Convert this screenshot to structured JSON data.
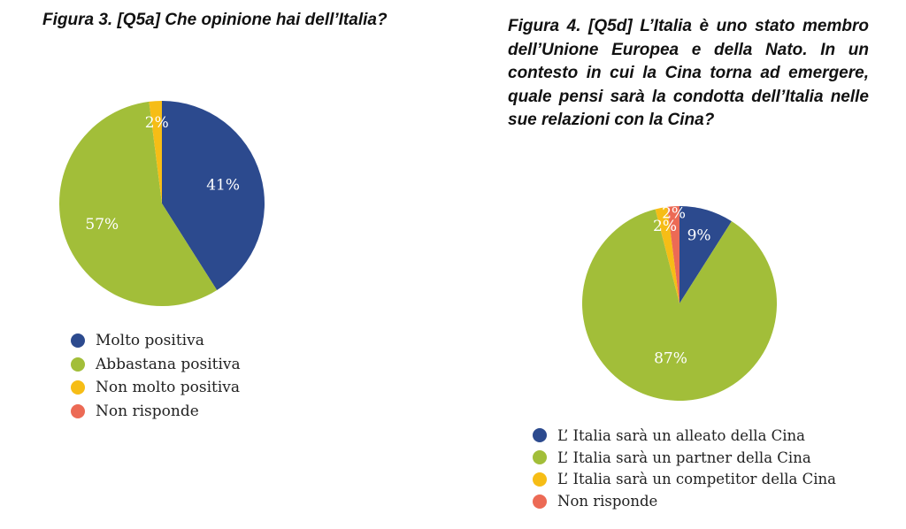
{
  "colors": {
    "blue": "#2c4a8e",
    "green": "#a2be39",
    "yellow": "#f6bd16",
    "red": "#ec6a55"
  },
  "chart_data": [
    {
      "type": "pie",
      "title": "Figura 3. [Q5a] Che opinione hai dell’Italia?",
      "slices": [
        {
          "label": "Molto positiva",
          "value": 41,
          "color": "#2c4a8e",
          "data_label": "41%"
        },
        {
          "label": "Abbastana positiva",
          "value": 57,
          "color": "#a2be39",
          "data_label": "57%"
        },
        {
          "label": "Non molto positiva",
          "value": 2,
          "color": "#f6bd16",
          "data_label": "2%"
        },
        {
          "label": "Non risponde",
          "value": 0,
          "color": "#ec6a55",
          "data_label": ""
        }
      ],
      "legend_position": "bottom-left"
    },
    {
      "type": "pie",
      "title": "Figura 4. [Q5d] L’Italia è uno stato membro dell’Unione Europea e della Nato. In un contesto in cui la Cina torna ad emergere, quale pensi sarà la condotta dell’Italia nelle sue relazioni con la Cina?",
      "slices": [
        {
          "label": "L’ Italia sarà un alleato della Cina",
          "value": 9,
          "color": "#2c4a8e",
          "data_label": "9%"
        },
        {
          "label": "L’ Italia sarà un partner della Cina",
          "value": 87,
          "color": "#a2be39",
          "data_label": "87%"
        },
        {
          "label": "L’ Italia sarà un competitor della Cina",
          "value": 2,
          "color": "#f6bd16",
          "data_label": "2%"
        },
        {
          "label": "Non risponde",
          "value": 2,
          "color": "#ec6a55",
          "data_label": "2%"
        }
      ],
      "legend_position": "bottom-left"
    }
  ]
}
